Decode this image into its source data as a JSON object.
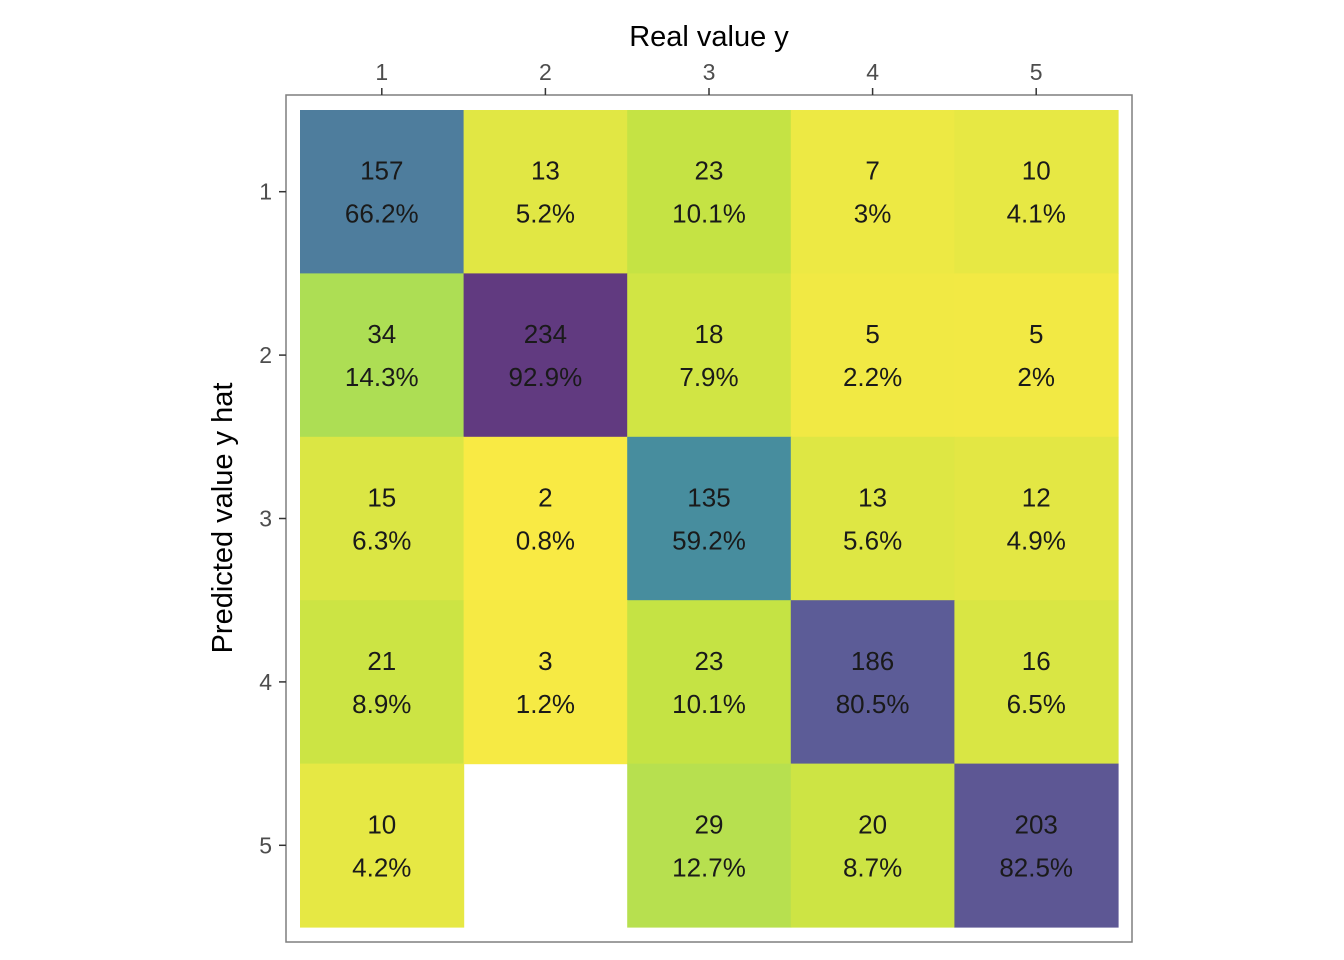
{
  "chart_data": {
    "type": "heatmap",
    "xlabel": "Real value y",
    "ylabel": "Predicted value y hat",
    "x_categories": [
      "1",
      "2",
      "3",
      "4",
      "5"
    ],
    "y_categories": [
      "1",
      "2",
      "3",
      "4",
      "5"
    ],
    "x_axis_position": "top",
    "grid": false,
    "legend": "none",
    "colormap": "viridis",
    "cells": [
      {
        "x": "1",
        "y": "1",
        "count": 157,
        "percent": 66.2,
        "label": "157",
        "sublabel": "66.2%"
      },
      {
        "x": "2",
        "y": "1",
        "count": 13,
        "percent": 5.2,
        "label": "13",
        "sublabel": "5.2%"
      },
      {
        "x": "3",
        "y": "1",
        "count": 23,
        "percent": 10.1,
        "label": "23",
        "sublabel": "10.1%"
      },
      {
        "x": "4",
        "y": "1",
        "count": 7,
        "percent": 3,
        "label": "7",
        "sublabel": "3%"
      },
      {
        "x": "5",
        "y": "1",
        "count": 10,
        "percent": 4.1,
        "label": "10",
        "sublabel": "4.1%"
      },
      {
        "x": "1",
        "y": "2",
        "count": 34,
        "percent": 14.3,
        "label": "34",
        "sublabel": "14.3%"
      },
      {
        "x": "2",
        "y": "2",
        "count": 234,
        "percent": 92.9,
        "label": "234",
        "sublabel": "92.9%"
      },
      {
        "x": "3",
        "y": "2",
        "count": 18,
        "percent": 7.9,
        "label": "18",
        "sublabel": "7.9%"
      },
      {
        "x": "4",
        "y": "2",
        "count": 5,
        "percent": 2.2,
        "label": "5",
        "sublabel": "2.2%"
      },
      {
        "x": "5",
        "y": "2",
        "count": 5,
        "percent": 2,
        "label": "5",
        "sublabel": "2%"
      },
      {
        "x": "1",
        "y": "3",
        "count": 15,
        "percent": 6.3,
        "label": "15",
        "sublabel": "6.3%"
      },
      {
        "x": "2",
        "y": "3",
        "count": 2,
        "percent": 0.8,
        "label": "2",
        "sublabel": "0.8%"
      },
      {
        "x": "3",
        "y": "3",
        "count": 135,
        "percent": 59.2,
        "label": "135",
        "sublabel": "59.2%"
      },
      {
        "x": "4",
        "y": "3",
        "count": 13,
        "percent": 5.6,
        "label": "13",
        "sublabel": "5.6%"
      },
      {
        "x": "5",
        "y": "3",
        "count": 12,
        "percent": 4.9,
        "label": "12",
        "sublabel": "4.9%"
      },
      {
        "x": "1",
        "y": "4",
        "count": 21,
        "percent": 8.9,
        "label": "21",
        "sublabel": "8.9%"
      },
      {
        "x": "2",
        "y": "4",
        "count": 3,
        "percent": 1.2,
        "label": "3",
        "sublabel": "1.2%"
      },
      {
        "x": "3",
        "y": "4",
        "count": 23,
        "percent": 10.1,
        "label": "23",
        "sublabel": "10.1%"
      },
      {
        "x": "4",
        "y": "4",
        "count": 186,
        "percent": 80.5,
        "label": "186",
        "sublabel": "80.5%"
      },
      {
        "x": "5",
        "y": "4",
        "count": 16,
        "percent": 6.5,
        "label": "16",
        "sublabel": "6.5%"
      },
      {
        "x": "1",
        "y": "5",
        "count": 10,
        "percent": 4.2,
        "label": "10",
        "sublabel": "4.2%"
      },
      {
        "x": "3",
        "y": "5",
        "count": 29,
        "percent": 12.7,
        "label": "29",
        "sublabel": "12.7%"
      },
      {
        "x": "4",
        "y": "5",
        "count": 20,
        "percent": 8.7,
        "label": "20",
        "sublabel": "8.7%"
      },
      {
        "x": "5",
        "y": "5",
        "count": 203,
        "percent": 82.5,
        "label": "203",
        "sublabel": "82.5%"
      }
    ]
  },
  "colors": {
    "panel_border": "#7f7f7f",
    "tick": "#333333",
    "tick_label": "#4d4d4d",
    "cell_text": "#1a1a1a",
    "background": "#ffffff"
  }
}
